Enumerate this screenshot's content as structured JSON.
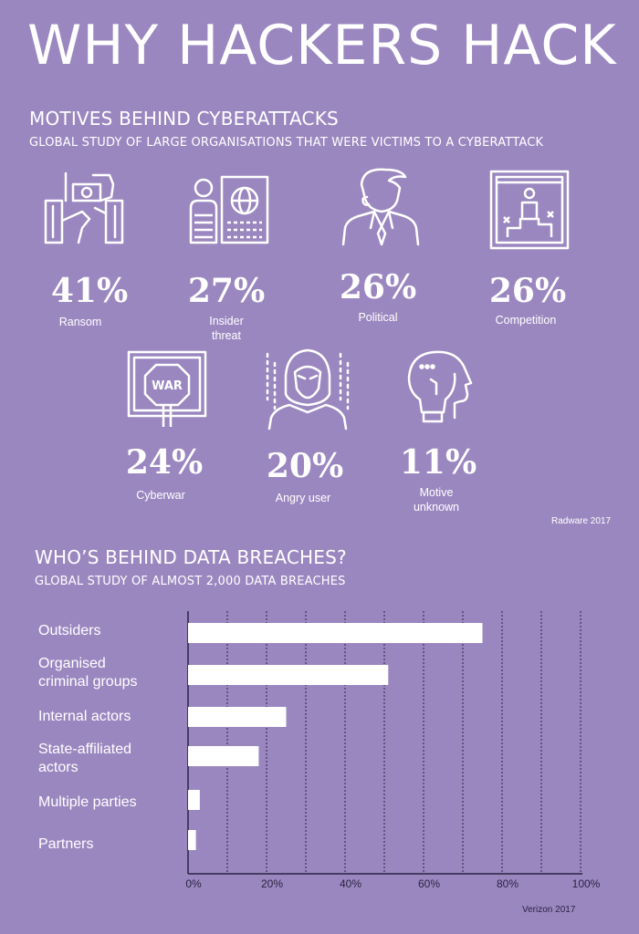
{
  "title": "WHY HACKERS HACK",
  "motives": {
    "title": "MOTIVES BEHIND CYBERATTACKS",
    "subtitle": "GLOBAL STUDY OF LARGE ORGANISATIONS THAT WERE VICTIMS TO A CYBERATTACK",
    "source": "Radware 2017",
    "items": [
      {
        "value": "41%",
        "label": "Ransom",
        "icon": "ransom-icon"
      },
      {
        "value": "27%",
        "label": "Insider\nthreat",
        "icon": "insider-threat-icon"
      },
      {
        "value": "26%",
        "label": "Political",
        "icon": "politician-icon"
      },
      {
        "value": "26%",
        "label": "Competition",
        "icon": "podium-icon"
      },
      {
        "value": "24%",
        "label": "Cyberwar",
        "icon": "war-sign-icon"
      },
      {
        "value": "20%",
        "label": "Angry user",
        "icon": "hooded-hacker-icon"
      },
      {
        "value": "11%",
        "label": "Motive\nunknown",
        "icon": "question-head-icon"
      }
    ]
  },
  "breaches": {
    "title": "WHO’S BEHIND DATA BREACHES?",
    "subtitle": "GLOBAL STUDY OF ALMOST 2,000 DATA BREACHES",
    "source": "Verizon 2017"
  },
  "chart_data": {
    "type": "bar",
    "orientation": "horizontal",
    "categories": [
      "Outsiders",
      "Organised\ncriminal groups",
      "Internal actors",
      "State-affiliated\nactors",
      "Multiple parties",
      "Partners"
    ],
    "values": [
      75,
      51,
      25,
      18,
      3,
      2
    ],
    "xlim": [
      0,
      100
    ],
    "xticks": [
      "0%",
      "20%",
      "40%",
      "60%",
      "80%",
      "100%"
    ],
    "grid": true,
    "colors": {
      "bar": "#ffffff",
      "axis": "#2a2342",
      "grid": "#2a2342",
      "background": "#9b87c0"
    }
  }
}
